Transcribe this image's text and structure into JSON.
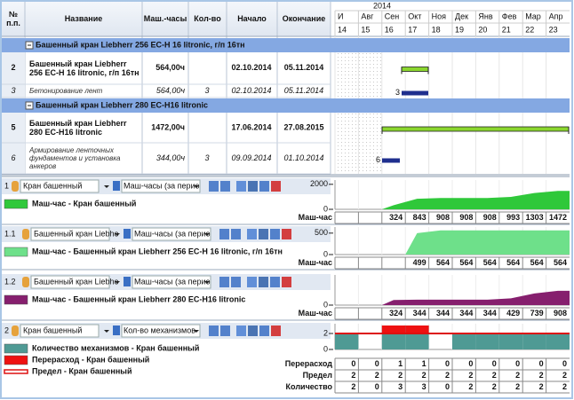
{
  "table": {
    "headers": [
      "№ п.п.",
      "Название",
      "Маш.-часы",
      "Кол-во",
      "Начало",
      "Окончание"
    ],
    "year": "2014",
    "months": [
      "И",
      "Авг",
      "Сен",
      "Окт",
      "Ноя",
      "Дек",
      "Янв",
      "Фев",
      "Мар",
      "Апр"
    ],
    "weeks": [
      14,
      15,
      16,
      17,
      18,
      19,
      20,
      21,
      22,
      23
    ],
    "groups": [
      {
        "title": "Башенный кран Liebherr 256 EC-H 16 litronic, г/п 16тн",
        "rows": [
          {
            "no": 2,
            "name": "Башенный кран Liebherr 256 EC-H 16 litronic, г/п 16тн",
            "hours": "564,00ч",
            "start": "02.10.2014",
            "end": "05.11.2014"
          },
          {
            "no": 3,
            "name": "Бетонирование лент",
            "hours": "564,00ч",
            "count": 3,
            "start": "02.10.2014",
            "end": "05.11.2014"
          }
        ]
      },
      {
        "title": "Башенный кран Liebherr 280 EC-H16 litronic",
        "rows": [
          {
            "no": 5,
            "name": "Башенный кран Liebherr 280 EC-H16 litronic",
            "hours": "1472,00ч",
            "start": "17.06.2014",
            "end": "27.08.2015"
          },
          {
            "no": 6,
            "name": "Армирование ленточных фундаментов и установка анкеров",
            "hours": "344,00ч",
            "count": 3,
            "start": "09.09.2014",
            "end": "01.10.2014"
          }
        ]
      }
    ]
  },
  "panels": [
    {
      "no": "1",
      "resource": "Кран башенный",
      "metric": "Маш-часы (за перио",
      "legend": [
        {
          "label": "Маш-час - Кран башенный",
          "color": "#2fc83a"
        }
      ],
      "ylim": [
        0,
        2200
      ],
      "yticks": [
        2000,
        0
      ],
      "rows": [
        {
          "label": "Маш-час",
          "values": [
            null,
            null,
            324,
            843,
            908,
            908,
            908,
            993,
            1303,
            1472
          ]
        }
      ]
    },
    {
      "no": "1.1",
      "resource": "Башенный кран Liebhe",
      "metric": "Маш-часы (за перио",
      "legend": [
        {
          "label": "Маш-час - Башенный кран Liebherr 256 EC-H 16 litronic, г/п 16тн",
          "color": "#6ee08a"
        }
      ],
      "ylim": [
        0,
        600
      ],
      "yticks": [
        500,
        0
      ],
      "rows": [
        {
          "label": "Маш-час",
          "values": [
            null,
            null,
            null,
            499,
            564,
            564,
            564,
            564,
            564,
            564
          ]
        }
      ]
    },
    {
      "no": "1.2",
      "resource": "Башенный кран Liebhe",
      "metric": "Маш-часы (за перио",
      "legend": [
        {
          "label": "Маш-час - Башенный кран Liebherr 280 EC-H16 litronic",
          "color": "#861f6e"
        }
      ],
      "ylim": [
        0,
        1800
      ],
      "yticks": [
        0
      ],
      "rows": [
        {
          "label": "Маш-час",
          "values": [
            null,
            null,
            324,
            344,
            344,
            344,
            344,
            429,
            739,
            908
          ]
        }
      ]
    },
    {
      "no": "2",
      "resource": "Кран башенный",
      "metric": "Кол-во механизмов",
      "legend": [
        {
          "label": "Количество механизмов - Кран башенный",
          "color": "#4f9a94"
        },
        {
          "label": "Перерасход - Кран башенный",
          "color": "#ee1111"
        },
        {
          "label": "Предел - Кран башенный",
          "color": "#dd1111"
        }
      ],
      "ylim": [
        0,
        3
      ],
      "yticks": [
        2,
        0
      ],
      "rows": [
        {
          "label": "Перерасход",
          "values": [
            0,
            0,
            1,
            1,
            0,
            0,
            0,
            0,
            0,
            0
          ]
        },
        {
          "label": "Предел",
          "values": [
            2,
            2,
            2,
            2,
            2,
            2,
            2,
            2,
            2,
            2
          ]
        },
        {
          "label": "Количество",
          "values": [
            2,
            0,
            3,
            3,
            0,
            2,
            2,
            2,
            2,
            2
          ]
        }
      ]
    }
  ]
}
